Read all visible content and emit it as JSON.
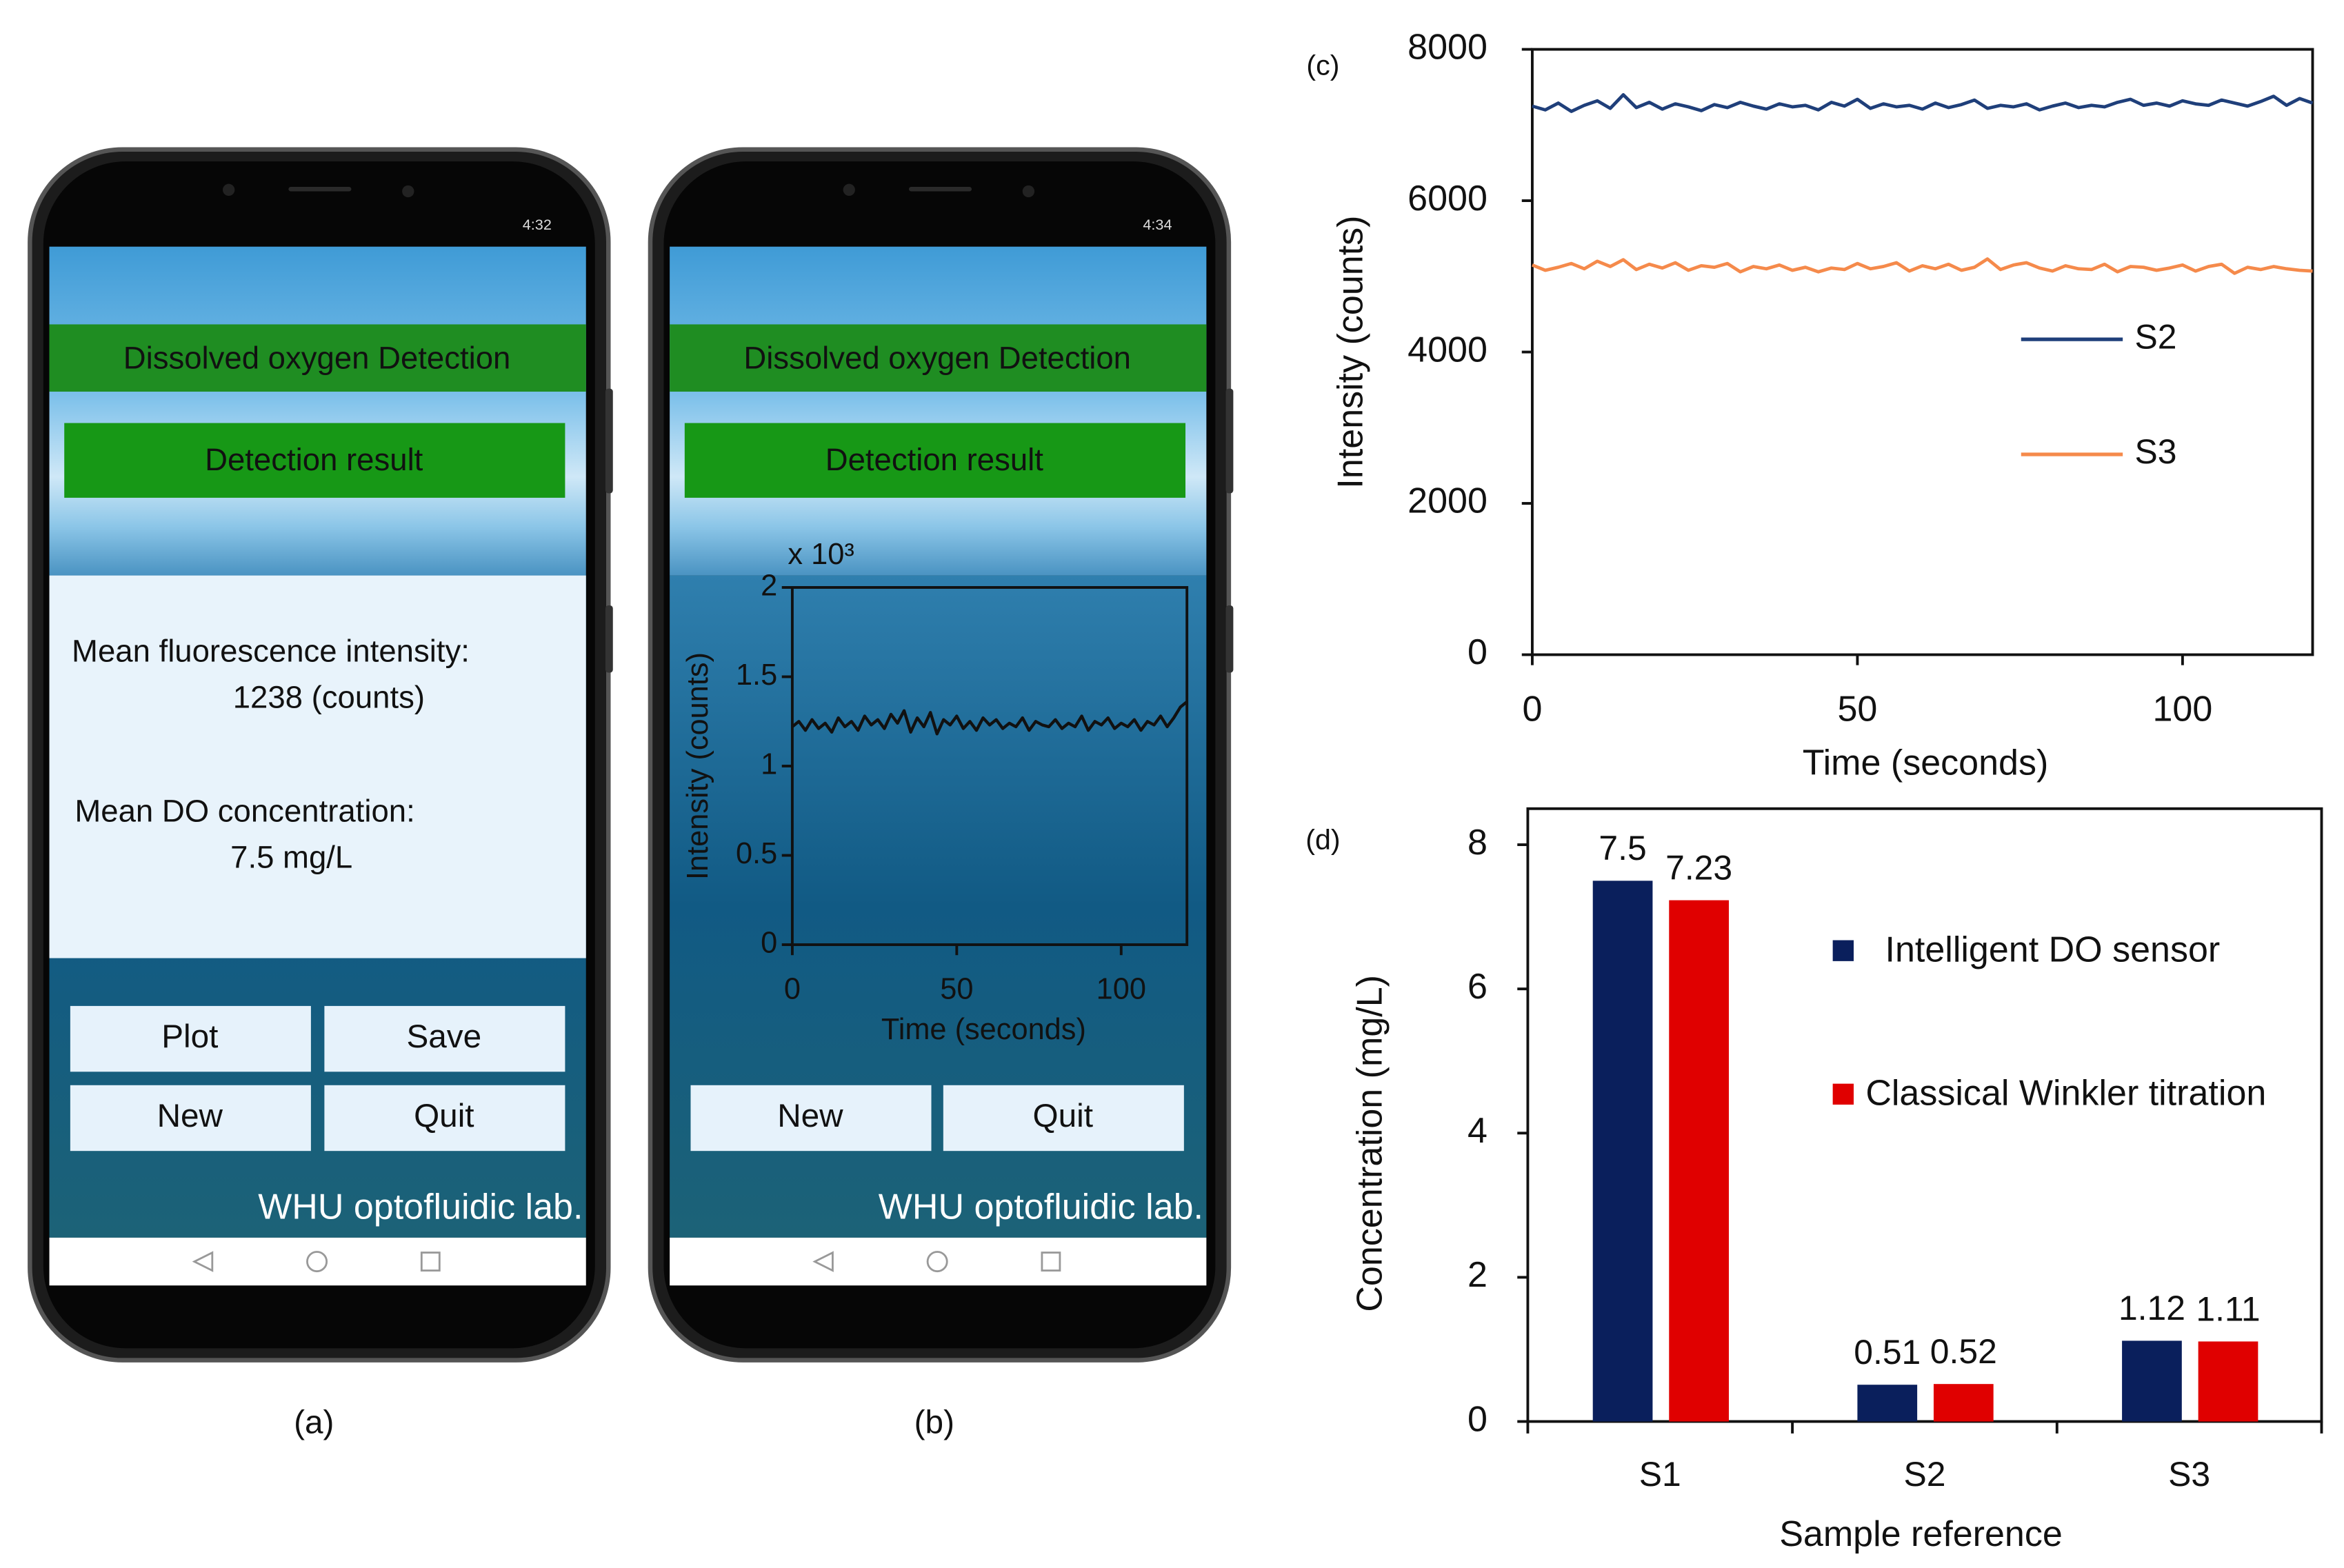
{
  "phones": [
    {
      "status_time": "4:32",
      "banner": "Dissolved oxygen Detection",
      "result_button": "Detection result",
      "lines": [
        "Mean fluorescence intensity:",
        "1238 (counts)",
        "Mean DO concentration:",
        "7.5 mg/L"
      ],
      "buttons": [
        "Plot",
        "Save",
        "New",
        "Quit"
      ],
      "footer": "WHU optofluidic lab.",
      "caption": "(a)"
    },
    {
      "status_time": "4:34",
      "banner": "Dissolved oxygen Detection",
      "result_button": "Detection result",
      "buttons": [
        "New",
        "Quit"
      ],
      "footer": "WHU optofluidic lab.",
      "caption": "(b)"
    }
  ],
  "chart_data": [
    {
      "type": "line",
      "multiplier": "x 10³",
      "xlabel": "Time (seconds)",
      "ylabel": "Intensity (counts)",
      "x": [
        0,
        2,
        4,
        6,
        8,
        10,
        12,
        14,
        16,
        18,
        20,
        22,
        24,
        26,
        28,
        30,
        32,
        34,
        36,
        38,
        40,
        42,
        44,
        46,
        48,
        50,
        52,
        54,
        56,
        58,
        60,
        62,
        64,
        66,
        68,
        70,
        72,
        74,
        76,
        78,
        80,
        82,
        84,
        86,
        88,
        90,
        92,
        94,
        96,
        98,
        100,
        102,
        104,
        106,
        108,
        110,
        112,
        114,
        116,
        118,
        120
      ],
      "series": [
        {
          "color": "#111111",
          "values": [
            1.22,
            1.25,
            1.2,
            1.26,
            1.21,
            1.24,
            1.19,
            1.27,
            1.22,
            1.25,
            1.2,
            1.28,
            1.23,
            1.26,
            1.21,
            1.29,
            1.24,
            1.31,
            1.19,
            1.27,
            1.22,
            1.3,
            1.18,
            1.26,
            1.23,
            1.28,
            1.21,
            1.25,
            1.2,
            1.27,
            1.23,
            1.26,
            1.21,
            1.24,
            1.22,
            1.27,
            1.2,
            1.25,
            1.23,
            1.22,
            1.26,
            1.21,
            1.24,
            1.22,
            1.28,
            1.2,
            1.25,
            1.23,
            1.27,
            1.21,
            1.24,
            1.22,
            1.26,
            1.2,
            1.25,
            1.23,
            1.28,
            1.22,
            1.27,
            1.33,
            1.36
          ]
        }
      ],
      "xlim": [
        0,
        120
      ],
      "xticks": [
        0,
        50,
        100
      ],
      "ylim": [
        0,
        2
      ],
      "yticks": [
        0,
        0.5,
        1,
        1.5,
        2
      ]
    },
    {
      "type": "line",
      "panel_label": "(c)",
      "xlabel": "Time (seconds)",
      "ylabel": "Intensity (counts)",
      "x": [
        0,
        2,
        4,
        6,
        8,
        10,
        12,
        14,
        16,
        18,
        20,
        22,
        24,
        26,
        28,
        30,
        32,
        34,
        36,
        38,
        40,
        42,
        44,
        46,
        48,
        50,
        52,
        54,
        56,
        58,
        60,
        62,
        64,
        66,
        68,
        70,
        72,
        74,
        76,
        78,
        80,
        82,
        84,
        86,
        88,
        90,
        92,
        94,
        96,
        98,
        100,
        102,
        104,
        106,
        108,
        110,
        112,
        114,
        116,
        118,
        120
      ],
      "series": [
        {
          "name": "S2",
          "color": "#1f3f7a",
          "values": [
            7250,
            7200,
            7290,
            7180,
            7260,
            7320,
            7220,
            7400,
            7230,
            7300,
            7210,
            7280,
            7240,
            7190,
            7270,
            7230,
            7300,
            7250,
            7210,
            7280,
            7240,
            7260,
            7200,
            7300,
            7250,
            7340,
            7220,
            7280,
            7240,
            7260,
            7210,
            7290,
            7230,
            7270,
            7330,
            7220,
            7260,
            7240,
            7280,
            7200,
            7250,
            7290,
            7230,
            7260,
            7240,
            7300,
            7340,
            7260,
            7290,
            7250,
            7320,
            7280,
            7260,
            7330,
            7290,
            7250,
            7310,
            7380,
            7260,
            7350,
            7290
          ]
        },
        {
          "name": "S3",
          "color": "#f58a4b",
          "values": [
            5150,
            5080,
            5120,
            5170,
            5100,
            5200,
            5130,
            5220,
            5090,
            5160,
            5110,
            5180,
            5080,
            5140,
            5120,
            5170,
            5060,
            5130,
            5100,
            5150,
            5080,
            5120,
            5060,
            5110,
            5090,
            5170,
            5100,
            5130,
            5180,
            5070,
            5140,
            5100,
            5160,
            5080,
            5120,
            5230,
            5090,
            5150,
            5180,
            5110,
            5070,
            5140,
            5100,
            5090,
            5160,
            5060,
            5130,
            5120,
            5080,
            5110,
            5150,
            5070,
            5130,
            5160,
            5040,
            5120,
            5090,
            5130,
            5100,
            5080,
            5070
          ]
        }
      ],
      "xlim": [
        0,
        120
      ],
      "xticks": [
        0,
        50,
        100
      ],
      "ylim": [
        0,
        8000
      ],
      "yticks": [
        0,
        2000,
        4000,
        6000,
        8000
      ],
      "legend": "center right"
    },
    {
      "type": "bar",
      "panel_label": "(d)",
      "xlabel": "Sample reference",
      "ylabel": "Concentration (mg/L)",
      "categories": [
        "S1",
        "S2",
        "S3"
      ],
      "series": [
        {
          "name": "Intelligent DO sensor",
          "color": "#0a1f5c",
          "values": [
            7.5,
            0.51,
            1.12
          ]
        },
        {
          "name": "Classical Winkler titration",
          "color": "#e00000",
          "values": [
            7.23,
            0.52,
            1.11
          ]
        }
      ],
      "ylim": [
        0,
        8.5
      ],
      "yticks": [
        0,
        2,
        4,
        6,
        8
      ],
      "legend": "upper right"
    }
  ]
}
